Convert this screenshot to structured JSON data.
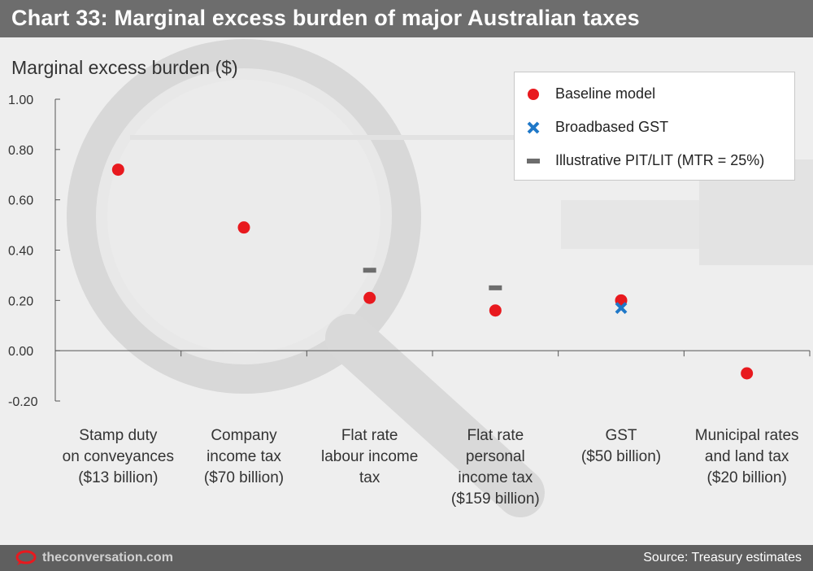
{
  "header": {
    "title": "Chart 33: Marginal excess burden of major Australian taxes"
  },
  "chart_data": {
    "type": "scatter",
    "ylabel": "Marginal excess burden ($)",
    "ylim": [
      -0.2,
      1.0
    ],
    "yticks": [
      "1.00",
      "0.80",
      "0.60",
      "0.40",
      "0.20",
      "0.00",
      "-0.20"
    ],
    "ytick_values": [
      1.0,
      0.8,
      0.6,
      0.4,
      0.2,
      0.0,
      -0.2
    ],
    "categories": [
      [
        "Stamp duty",
        "on conveyances",
        "($13 billion)"
      ],
      [
        "Company",
        "income tax",
        "($70 billion)"
      ],
      [
        "Flat rate",
        "labour income",
        "tax"
      ],
      [
        "Flat rate",
        "personal",
        "income tax",
        "($159 billion)"
      ],
      [
        "GST",
        "($50 billion)"
      ],
      [
        "Municipal rates",
        "and land tax",
        "($20 billion)"
      ]
    ],
    "series": [
      {
        "name": "Baseline model",
        "marker": "circle",
        "color": "#e8191e",
        "values": [
          0.72,
          0.49,
          0.21,
          0.16,
          0.2,
          -0.09
        ]
      },
      {
        "name": "Broadbased GST",
        "marker": "x",
        "color": "#1f78c8",
        "values": [
          null,
          null,
          null,
          null,
          0.17,
          null
        ]
      },
      {
        "name": "Illustrative PIT/LIT (MTR = 25%)",
        "marker": "dash",
        "color": "#6d6d6d",
        "values": [
          null,
          null,
          0.32,
          0.25,
          null,
          null
        ]
      }
    ],
    "legend_position": "top-right",
    "grid": false
  },
  "footer": {
    "site": "theconversation.com",
    "source": "Source: Treasury estimates"
  }
}
